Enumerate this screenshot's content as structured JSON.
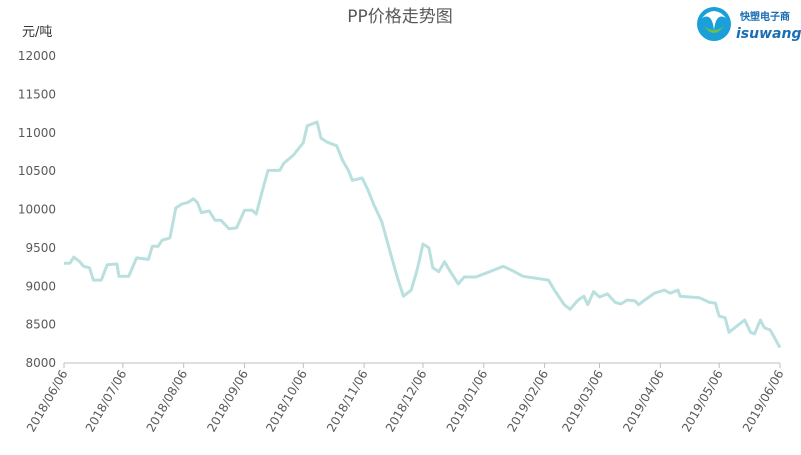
{
  "chart_data": {
    "type": "line",
    "title": "PP价格走势图",
    "y_label": "元/吨",
    "color": "#b9e0df",
    "x": [
      "2018/06/06",
      "2018/06/09",
      "2018/06/11",
      "2018/06/14",
      "2018/06/16",
      "2018/06/19",
      "2018/06/21",
      "2018/06/25",
      "2018/06/28",
      "2018/07/03",
      "2018/07/04",
      "2018/07/09",
      "2018/07/13",
      "2018/07/19",
      "2018/07/21",
      "2018/07/24",
      "2018/07/26",
      "2018/07/30",
      "2018/08/02",
      "2018/08/05",
      "2018/08/08",
      "2018/08/11",
      "2018/08/13",
      "2018/08/15",
      "2018/08/19",
      "2018/08/22",
      "2018/08/25",
      "2018/08/29",
      "2018/09/02",
      "2018/09/06",
      "2018/09/10",
      "2018/09/12",
      "2018/09/15",
      "2018/09/18",
      "2018/09/24",
      "2018/09/26",
      "2018/10/01",
      "2018/10/06",
      "2018/10/08",
      "2018/10/13",
      "2018/10/15",
      "2018/10/18",
      "2018/10/23",
      "2018/10/26",
      "2018/10/29",
      "2018/10/31",
      "2018/11/05",
      "2018/11/08",
      "2018/11/11",
      "2018/11/15",
      "2018/11/19",
      "2018/11/23",
      "2018/11/26",
      "2018/11/30",
      "2018/12/03",
      "2018/12/06",
      "2018/12/09",
      "2018/12/11",
      "2018/12/14",
      "2018/12/17",
      "2018/12/20",
      "2018/12/24",
      "2018/12/27",
      "2019/01/02",
      "2019/01/07",
      "2019/01/11",
      "2019/01/16",
      "2019/01/20",
      "2019/01/26",
      "2019/02/08",
      "2019/02/11",
      "2019/02/16",
      "2019/02/19",
      "2019/02/23",
      "2019/02/26",
      "2019/02/28",
      "2019/03/03",
      "2019/03/06",
      "2019/03/10",
      "2019/03/14",
      "2019/03/17",
      "2019/03/20",
      "2019/03/24",
      "2019/03/26",
      "2019/03/29",
      "2019/04/03",
      "2019/04/08",
      "2019/04/11",
      "2019/04/15",
      "2019/04/16",
      "2019/04/21",
      "2019/04/26",
      "2019/05/01",
      "2019/05/04",
      "2019/05/06",
      "2019/05/09",
      "2019/05/11",
      "2019/05/16",
      "2019/05/19",
      "2019/05/22",
      "2019/05/24",
      "2019/05/27",
      "2019/05/29",
      "2019/06/01",
      "2019/06/06"
    ],
    "values": [
      9300,
      9300,
      9380,
      9320,
      9260,
      9240,
      9080,
      9080,
      9280,
      9290,
      9130,
      9130,
      9370,
      9350,
      9520,
      9520,
      9600,
      9630,
      10020,
      10070,
      10090,
      10140,
      10090,
      9960,
      9980,
      9860,
      9860,
      9750,
      9760,
      9990,
      9990,
      9940,
      10230,
      10510,
      10510,
      10600,
      10710,
      10870,
      11090,
      11140,
      10930,
      10880,
      10830,
      10640,
      10510,
      10380,
      10410,
      10250,
      10060,
      9840,
      9470,
      9110,
      8870,
      8950,
      9210,
      9550,
      9500,
      9240,
      9190,
      9320,
      9190,
      9030,
      9120,
      9120,
      9170,
      9210,
      9260,
      9210,
      9130,
      9080,
      8950,
      8760,
      8700,
      8820,
      8870,
      8760,
      8930,
      8860,
      8900,
      8790,
      8770,
      8820,
      8810,
      8760,
      8820,
      8910,
      8950,
      8910,
      8950,
      8870,
      8860,
      8850,
      8790,
      8780,
      8610,
      8590,
      8400,
      8500,
      8560,
      8400,
      8380,
      8560,
      8460,
      8430,
      8200
    ],
    "xlim": [
      "2018/06/06",
      "2019/06/06"
    ],
    "xticks": [
      "2018/06/06",
      "2018/07/06",
      "2018/08/06",
      "2018/09/06",
      "2018/10/06",
      "2018/11/06",
      "2018/12/06",
      "2019/01/06",
      "2019/02/06",
      "2019/03/06",
      "2019/04/06",
      "2019/05/06",
      "2019/06/06"
    ],
    "ylim": [
      8000,
      12000
    ],
    "yticks": [
      8000,
      8500,
      9000,
      9500,
      10000,
      10500,
      11000,
      11500,
      12000
    ]
  },
  "logo": {
    "name": "快塑电子商",
    "site": "isuwang.co"
  }
}
